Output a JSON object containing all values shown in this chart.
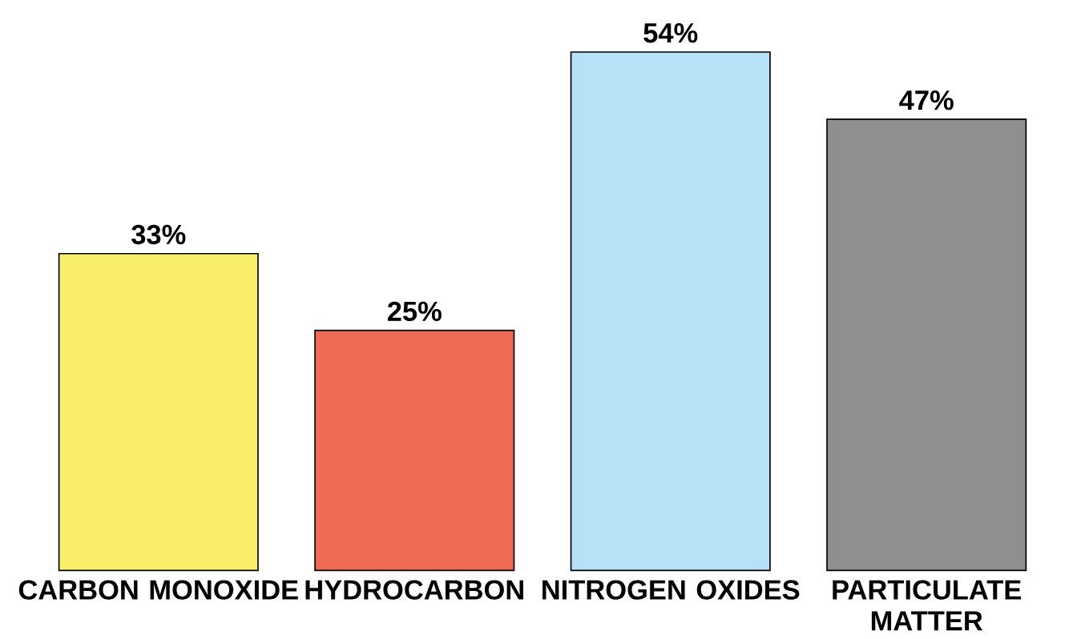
{
  "chart_data": {
    "type": "bar",
    "categories": [
      "CARBON MONOXIDE",
      "HYDROCARBON",
      "NITROGEN OXIDES",
      "PARTICULATE MATTER"
    ],
    "values": [
      33,
      25,
      54,
      47
    ],
    "colors": [
      "#f9ee6a",
      "#ee6a55",
      "#b5e2f7",
      "#8f8f8f"
    ],
    "value_labels": [
      "33%",
      "25%",
      "54%",
      "47%"
    ]
  }
}
